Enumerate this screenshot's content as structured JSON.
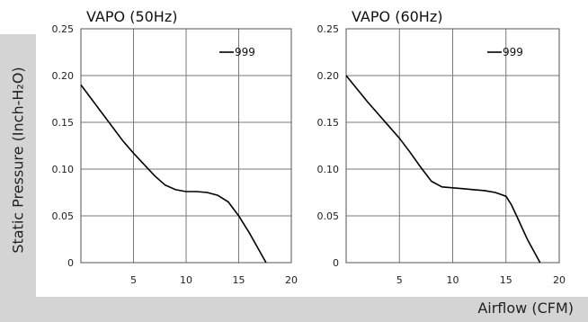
{
  "ylabel": "Static Pressure (Inch-H₂O)",
  "xlabel": "Airflow (CFM)",
  "chart_data": [
    {
      "type": "line",
      "title": "VAPO (50Hz)",
      "xlim": [
        0,
        20
      ],
      "ylim": [
        0,
        0.25
      ],
      "xticks": [
        5,
        10,
        15,
        20
      ],
      "yticks": [
        0,
        0.05,
        0.1,
        0.15,
        0.2,
        0.25
      ],
      "ytick_labels": [
        "0",
        "0.05",
        "0.10",
        "0.15",
        "0.20",
        "0.25"
      ],
      "grid": true,
      "legend_position": "top-right",
      "series": [
        {
          "name": "999",
          "x": [
            0,
            2,
            4,
            5,
            6,
            7,
            8,
            9,
            10,
            11,
            12,
            13,
            14,
            15,
            16,
            17,
            17.6
          ],
          "y": [
            0.19,
            0.16,
            0.13,
            0.117,
            0.105,
            0.093,
            0.083,
            0.078,
            0.076,
            0.076,
            0.075,
            0.072,
            0.065,
            0.05,
            0.032,
            0.012,
            0
          ]
        }
      ]
    },
    {
      "type": "line",
      "title": "VAPO (60Hz)",
      "xlim": [
        0,
        20
      ],
      "ylim": [
        0,
        0.25
      ],
      "xticks": [
        5,
        10,
        15,
        20
      ],
      "yticks": [
        0,
        0.05,
        0.1,
        0.15,
        0.2,
        0.25
      ],
      "ytick_labels": [
        "0",
        "0.05",
        "0.10",
        "0.15",
        "0.20",
        "0.25"
      ],
      "grid": true,
      "legend_position": "top-right",
      "series": [
        {
          "name": "999",
          "x": [
            0,
            2,
            4,
            5,
            6,
            7,
            8,
            9,
            10,
            11,
            12,
            13,
            14,
            15,
            15.5,
            16,
            17,
            18.2
          ],
          "y": [
            0.2,
            0.172,
            0.146,
            0.133,
            0.118,
            0.102,
            0.087,
            0.081,
            0.08,
            0.079,
            0.078,
            0.077,
            0.075,
            0.071,
            0.062,
            0.05,
            0.025,
            0
          ]
        }
      ]
    }
  ]
}
